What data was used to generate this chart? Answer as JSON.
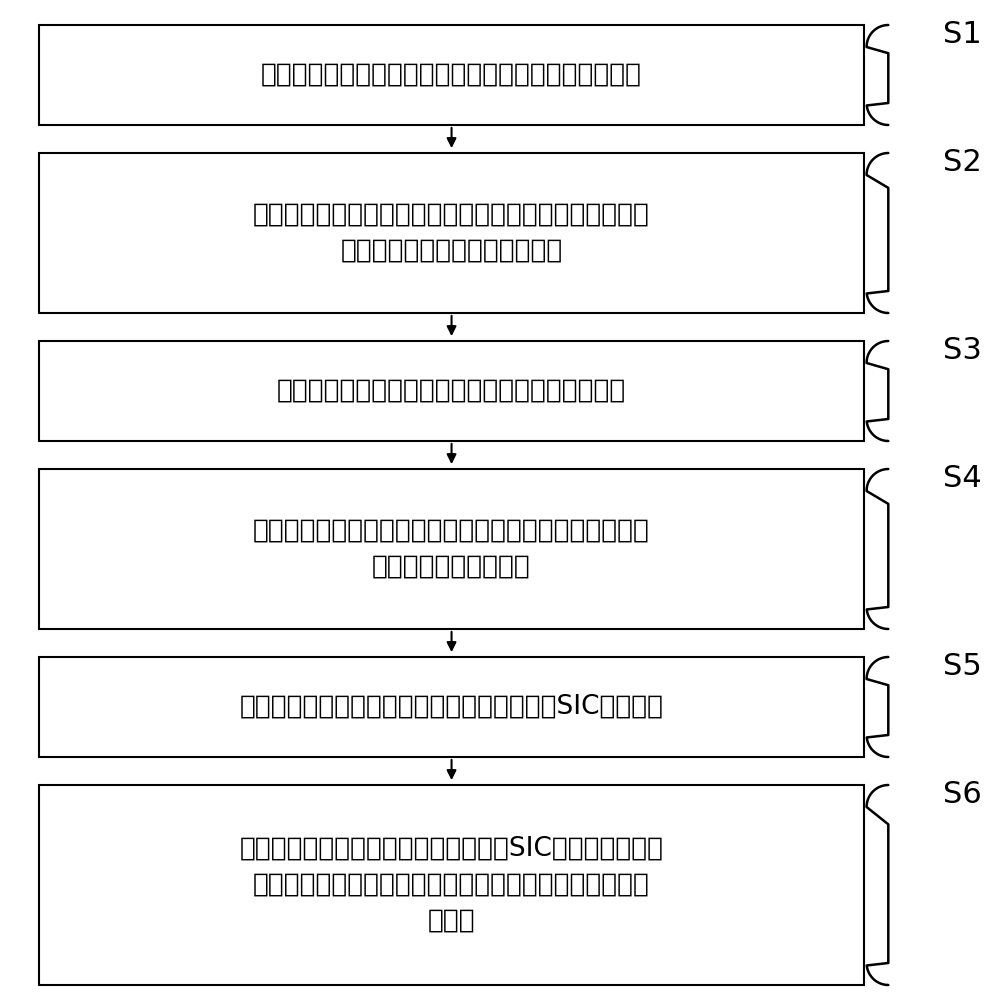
{
  "steps": [
    {
      "label": "S1",
      "text": "通过对估计的信道进行奇异值分解，得到模拟收发机；",
      "n_lines": 1
    },
    {
      "label": "S2",
      "text": "对所述模拟收发机构造出等效的传输信道，通过所述等效\n的传输信道初始化数字发射机；",
      "n_lines": 2
    },
    {
      "label": "S3",
      "text": "通过更新所述数字发射机，计算得到数字接收机；",
      "n_lines": 1
    },
    {
      "label": "S4",
      "text": "基于更新后的数字发射机、模拟发射机以及模拟接收机构\n造出自干扰等效信道；",
      "n_lines": 2
    },
    {
      "label": "S5",
      "text": "对所述自干扰等效信道进行奇异值分解，得到SIC接收机；",
      "n_lines": 1
    },
    {
      "label": "S6",
      "text": "计算所述模拟接收机、数字接收机以及SIC接收机的乘积以\n及所述模拟发射机与数字发射机的乘积，设计得到混合收\n发机。",
      "n_lines": 3
    }
  ],
  "box_color": "#ffffff",
  "border_color": "#000000",
  "text_color": "#000000",
  "label_color": "#000000",
  "arrow_color": "#000000",
  "background_color": "#ffffff",
  "fig_width": 9.87,
  "fig_height": 10.0,
  "font_size": 19,
  "label_font_size": 22
}
